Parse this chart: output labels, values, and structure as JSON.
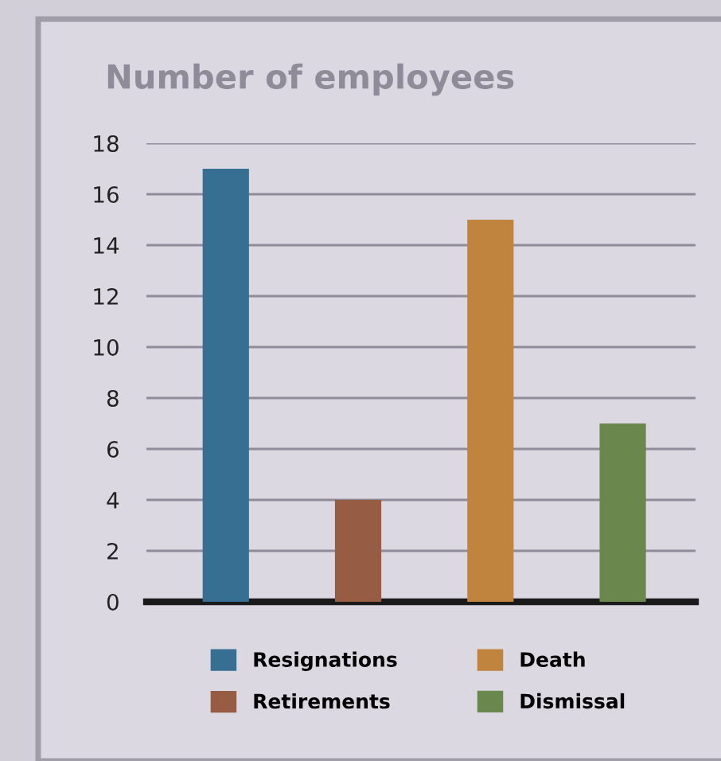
{
  "chart_data": {
    "type": "bar",
    "title": "Number of employees",
    "categories": [
      null,
      null,
      null,
      null
    ],
    "series": [
      {
        "name": "Resignations",
        "color": "#366f92",
        "values": [
          17,
          null,
          null,
          null
        ]
      },
      {
        "name": "Retirements",
        "color": "#965c44",
        "values": [
          null,
          4,
          null,
          null
        ]
      },
      {
        "name": "Death",
        "color": "#c1843f",
        "values": [
          null,
          null,
          15,
          null
        ]
      },
      {
        "name": "Dismissal",
        "color": "#6a874e",
        "values": [
          null,
          null,
          null,
          7
        ]
      }
    ],
    "ylim": [
      0,
      18
    ],
    "yticks": [
      0,
      2,
      4,
      6,
      8,
      10,
      12,
      14,
      16,
      18
    ],
    "grid": "y",
    "legend": "bottom"
  }
}
